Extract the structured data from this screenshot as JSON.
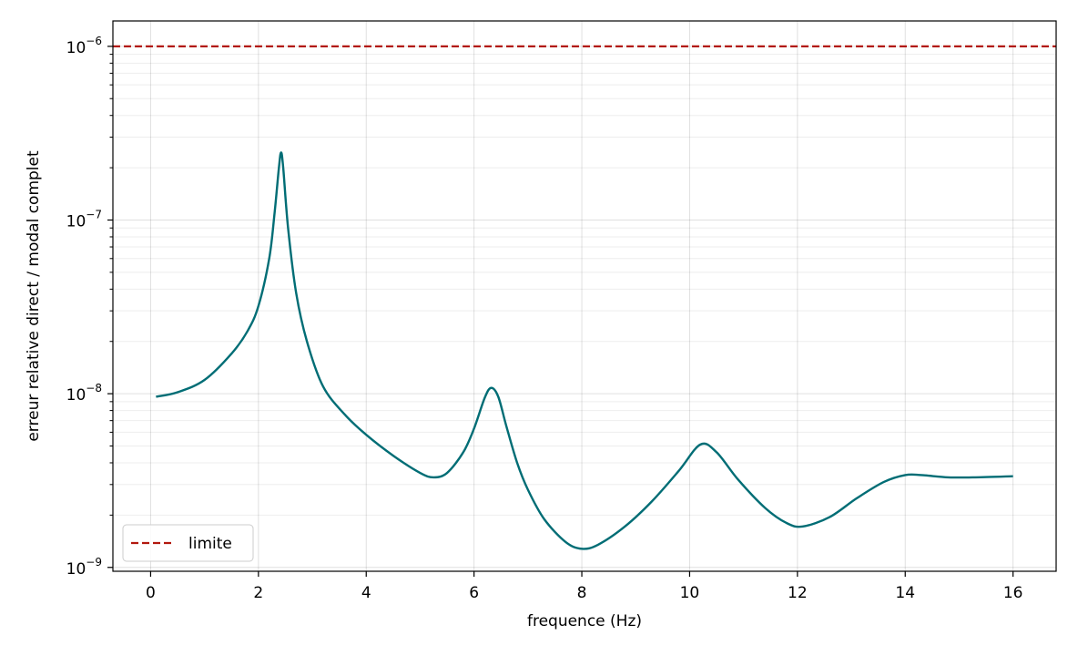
{
  "chart_data": {
    "type": "line",
    "xlabel": "frequence (Hz)",
    "ylabel": "erreur relative direct / modal complet",
    "yscale": "log",
    "xlim": [
      -0.7,
      16.8
    ],
    "ylim": [
      9.5e-10,
      1.4e-06
    ],
    "grid": true,
    "legend_position": "lower-left",
    "x_ticks": [
      {
        "value": 0,
        "label": "0"
      },
      {
        "value": 2,
        "label": "2"
      },
      {
        "value": 4,
        "label": "4"
      },
      {
        "value": 6,
        "label": "6"
      },
      {
        "value": 8,
        "label": "8"
      },
      {
        "value": 10,
        "label": "10"
      },
      {
        "value": 12,
        "label": "12"
      },
      {
        "value": 14,
        "label": "14"
      },
      {
        "value": 16,
        "label": "16"
      }
    ],
    "y_ticks": [
      {
        "value": 1e-09,
        "base": "10",
        "exp": "−9"
      },
      {
        "value": 1e-08,
        "base": "10",
        "exp": "−8"
      },
      {
        "value": 1e-07,
        "base": "10",
        "exp": "−7"
      },
      {
        "value": 1e-06,
        "base": "10",
        "exp": "−6"
      }
    ],
    "series": [
      {
        "name": "",
        "color": "#006d75",
        "style": "solid",
        "x": [
          0.1,
          0.5,
          1.0,
          1.5,
          1.8,
          2.0,
          2.2,
          2.3,
          2.38,
          2.42,
          2.46,
          2.55,
          2.7,
          2.9,
          3.2,
          3.6,
          4.0,
          4.5,
          5.0,
          5.25,
          5.5,
          5.8,
          6.0,
          6.2,
          6.32,
          6.45,
          6.6,
          6.8,
          7.0,
          7.3,
          7.7,
          8.0,
          8.3,
          8.8,
          9.3,
          9.8,
          10.2,
          10.5,
          10.9,
          11.4,
          11.8,
          12.1,
          12.6,
          13.1,
          13.6,
          14.0,
          14.3,
          14.8,
          15.3,
          16.0
        ],
        "y": [
          9.6e-09,
          1.02e-08,
          1.2e-08,
          1.7e-08,
          2.3e-08,
          3.2e-08,
          6e-08,
          1.1e-07,
          2e-07,
          2.45e-07,
          2e-07,
          9e-08,
          3.8e-08,
          2e-08,
          1.1e-08,
          7.6e-09,
          5.8e-09,
          4.4e-09,
          3.5e-09,
          3.3e-09,
          3.5e-09,
          4.6e-09,
          6.3e-09,
          9.5e-09,
          1.08e-08,
          9.6e-09,
          6.5e-09,
          4e-09,
          2.8e-09,
          1.9e-09,
          1.4e-09,
          1.28e-09,
          1.35e-09,
          1.72e-09,
          2.4e-09,
          3.6e-09,
          5.1e-09,
          4.6e-09,
          3.2e-09,
          2.2e-09,
          1.8e-09,
          1.72e-09,
          1.95e-09,
          2.5e-09,
          3.1e-09,
          3.4e-09,
          3.4e-09,
          3.3e-09,
          3.3e-09,
          3.35e-09
        ]
      },
      {
        "name": "limite",
        "color": "#b2180e",
        "style": "dashed",
        "x": [
          -0.7,
          16.8
        ],
        "y": [
          1e-06,
          1e-06
        ]
      }
    ],
    "legend": [
      {
        "label": "limite",
        "color": "#b2180e",
        "style": "dashed"
      }
    ]
  }
}
